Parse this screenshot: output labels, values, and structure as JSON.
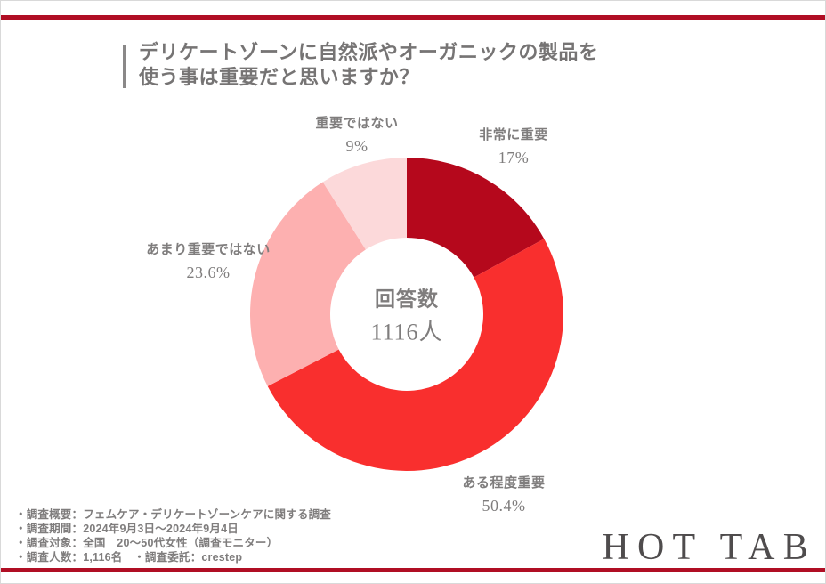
{
  "header": {
    "title_line1": "デリケートゾーンに自然派やオーガニックの製品を",
    "title_line2": "使う事は重要だと思いますか？"
  },
  "chart_data": {
    "type": "pie",
    "subtype": "donut",
    "title": "デリケートゾーンに自然派やオーガニックの製品を使う事は重要だと思いますか？",
    "direction": "clockwise",
    "start_angle_deg": 0,
    "inner_radius_ratio": 0.49,
    "legend_position": "labels-around-chart",
    "center_label": {
      "line1": "回答数",
      "line2": "1116人"
    },
    "segments": [
      {
        "label": "非常に重要",
        "value": 17,
        "display": "17%",
        "color": "#B5081C"
      },
      {
        "label": "ある程度重要",
        "value": 50.4,
        "display": "50.4%",
        "color": "#F92F2E"
      },
      {
        "label": "あまり重要ではない",
        "value": 23.6,
        "display": "23.6%",
        "color": "#FDB0B0"
      },
      {
        "label": "重要ではない",
        "value": 9,
        "display": "9%",
        "color": "#FCD9DA"
      }
    ]
  },
  "footer": {
    "notes": [
      "・調査概要：フェムケア・デリケートゾーンケアに関する調査",
      "・調査期間：2024年9月3日～2024年9月4日",
      "・調査対象：全国　20～50代女性（調査モニター）",
      "・調査人数：1,116名　・調査委託：crestep"
    ],
    "logo_text": "HOT TAB"
  },
  "colors": {
    "accent_bar": "#B00E24",
    "title_text": "#767474",
    "label_text": "#7F7D7D",
    "logo_text": "#4F4C4D",
    "donut_background": "#FFFFFF"
  }
}
